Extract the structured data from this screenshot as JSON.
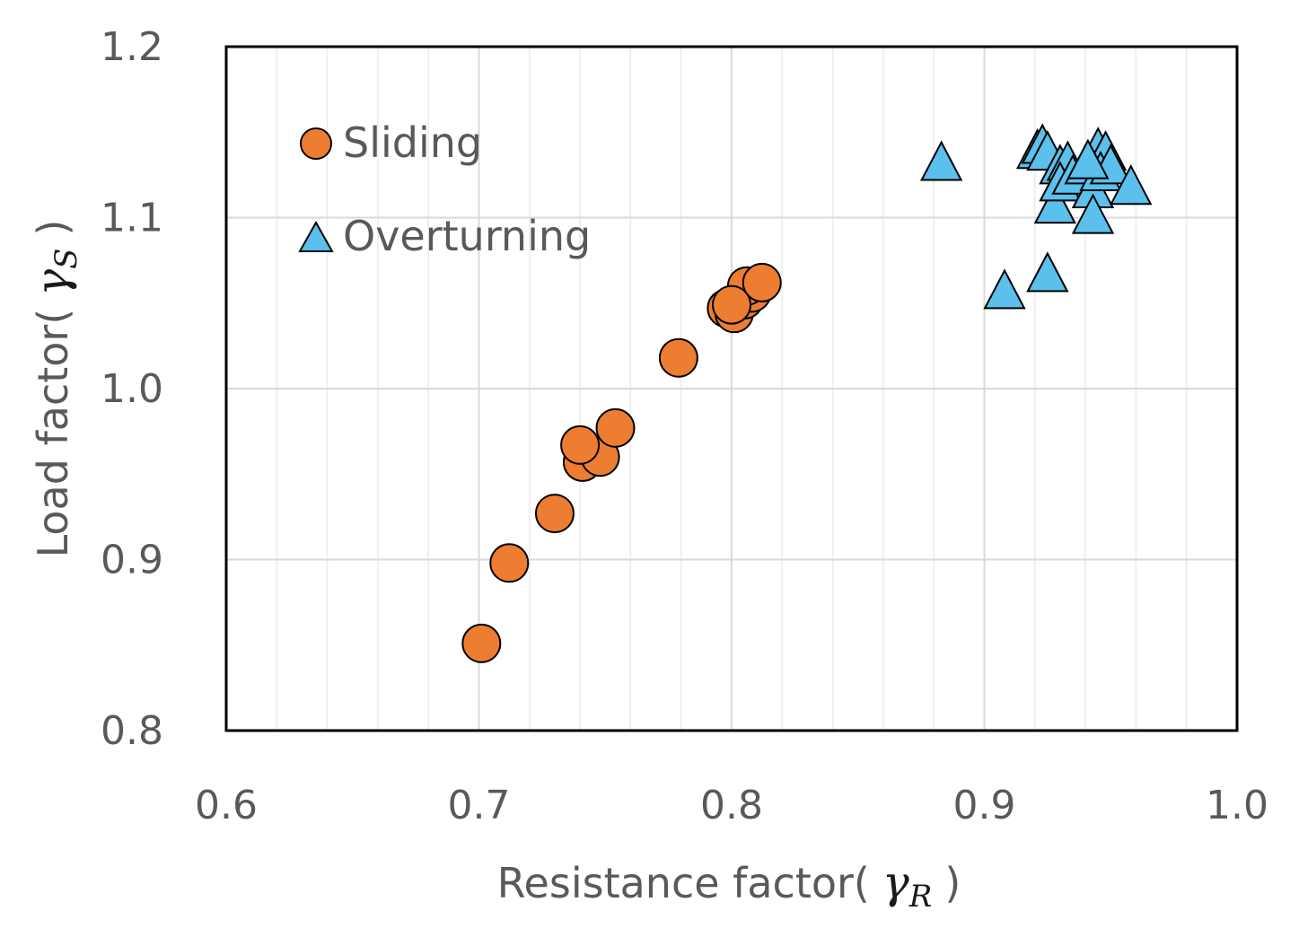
{
  "chart_data": {
    "type": "scatter",
    "xlabel": {
      "prefix": "Resistance factor(",
      "symbol": "γ",
      "subscript": "R",
      "suffix": ")"
    },
    "ylabel": {
      "prefix": "Load factor(",
      "symbol": "γ",
      "subscript": "S",
      "suffix": ")"
    },
    "xlim": [
      0.6,
      1.0
    ],
    "ylim": [
      0.8,
      1.2
    ],
    "xticks": [
      "0.6",
      "0.7",
      "0.8",
      "0.9",
      "1.0"
    ],
    "yticks": [
      "0.8",
      "0.9",
      "1.0",
      "1.1",
      "1.2"
    ],
    "grid": true,
    "legend_position": "top-left",
    "series": [
      {
        "name": "Sliding",
        "marker": "circle",
        "color": "#ED7D31",
        "points": [
          {
            "x": 0.701,
            "y": 0.851
          },
          {
            "x": 0.712,
            "y": 0.898
          },
          {
            "x": 0.73,
            "y": 0.927
          },
          {
            "x": 0.741,
            "y": 0.957
          },
          {
            "x": 0.748,
            "y": 0.96
          },
          {
            "x": 0.74,
            "y": 0.967
          },
          {
            "x": 0.754,
            "y": 0.977
          },
          {
            "x": 0.779,
            "y": 1.018
          },
          {
            "x": 0.798,
            "y": 1.047
          },
          {
            "x": 0.801,
            "y": 1.044
          },
          {
            "x": 0.805,
            "y": 1.052
          },
          {
            "x": 0.808,
            "y": 1.056
          },
          {
            "x": 0.806,
            "y": 1.06
          },
          {
            "x": 0.812,
            "y": 1.062
          },
          {
            "x": 0.8,
            "y": 1.049
          }
        ]
      },
      {
        "name": "Overturning",
        "marker": "triangle",
        "color": "#5BC0EB",
        "points": [
          {
            "x": 0.883,
            "y": 1.132
          },
          {
            "x": 0.908,
            "y": 1.057
          },
          {
            "x": 0.925,
            "y": 1.067
          },
          {
            "x": 0.921,
            "y": 1.139
          },
          {
            "x": 0.923,
            "y": 1.142
          },
          {
            "x": 0.925,
            "y": 1.138
          },
          {
            "x": 0.93,
            "y": 1.13
          },
          {
            "x": 0.933,
            "y": 1.132
          },
          {
            "x": 0.928,
            "y": 1.107
          },
          {
            "x": 0.93,
            "y": 1.12
          },
          {
            "x": 0.935,
            "y": 1.124
          },
          {
            "x": 0.94,
            "y": 1.13
          },
          {
            "x": 0.943,
            "y": 1.116
          },
          {
            "x": 0.945,
            "y": 1.14
          },
          {
            "x": 0.948,
            "y": 1.138
          },
          {
            "x": 0.946,
            "y": 1.126
          },
          {
            "x": 0.95,
            "y": 1.13
          },
          {
            "x": 0.943,
            "y": 1.101
          },
          {
            "x": 0.958,
            "y": 1.118
          },
          {
            "x": 0.941,
            "y": 1.133
          }
        ]
      }
    ]
  }
}
